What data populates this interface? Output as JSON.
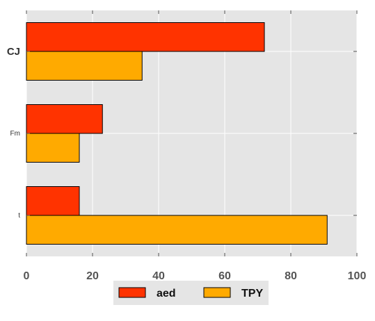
{
  "chart_data": {
    "type": "bar",
    "orientation": "horizontal",
    "categories": [
      "CJ",
      "Fm",
      "t"
    ],
    "series": [
      {
        "name": "aed",
        "values": [
          72,
          23,
          16
        ],
        "color": "#ff3300"
      },
      {
        "name": "TPY",
        "values": [
          35,
          16,
          91
        ],
        "color": "#ffaa00"
      }
    ],
    "xlim": [
      0,
      100
    ],
    "x_ticks": [
      0,
      20,
      40,
      60,
      80,
      100
    ],
    "grid": true,
    "background": "#e5e5e5",
    "legend_position": "bottom-center",
    "title": "",
    "xlabel": "",
    "ylabel": ""
  }
}
